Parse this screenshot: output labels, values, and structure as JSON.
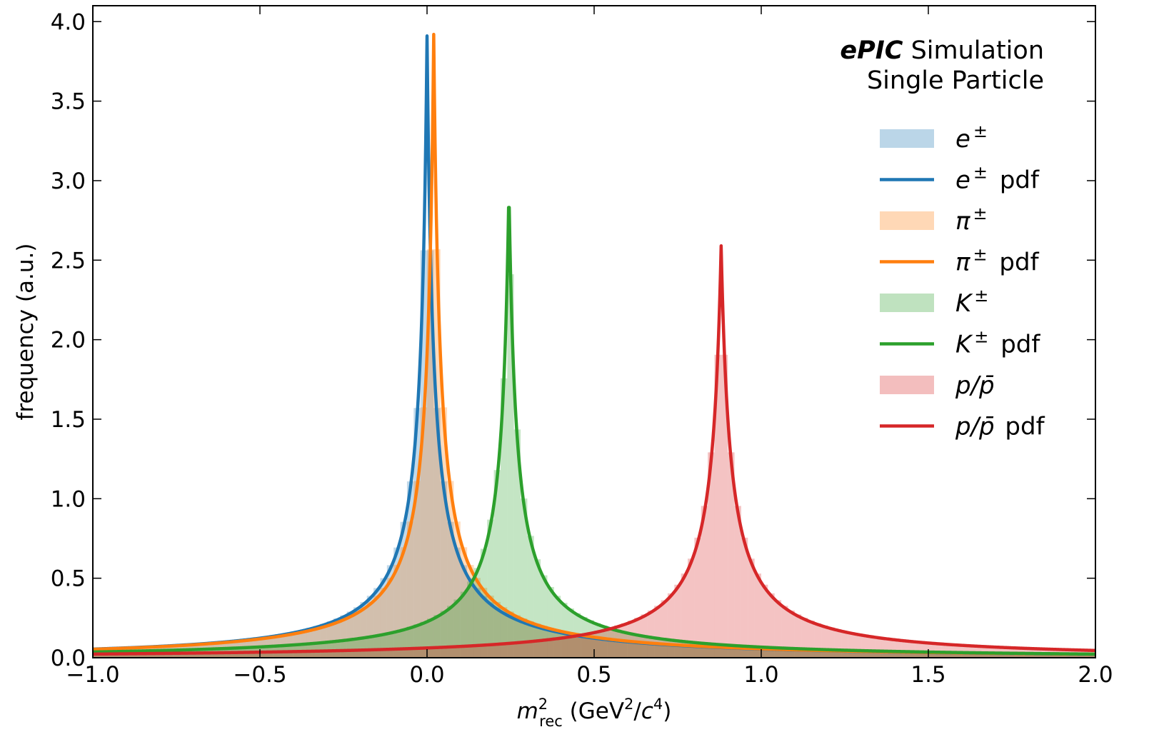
{
  "chart_data": {
    "type": "histogram",
    "title": "",
    "annotation": {
      "brand": "ePIC",
      "line1_suffix": "Simulation",
      "line2": "Single Particle"
    },
    "xlabel": {
      "symbol": "m",
      "superscript": "2",
      "subscript": "rec",
      "unit_open": "(GeV",
      "unit_sup1": "2",
      "unit_mid": "/",
      "unit_c": "c",
      "unit_sup2": "4",
      "unit_close": ")"
    },
    "ylabel": "frequency (a.u.)",
    "xlim": [
      -1.0,
      2.0
    ],
    "ylim": [
      0.0,
      4.1
    ],
    "xticks": [
      -1.0,
      -0.5,
      0.0,
      0.5,
      1.0,
      1.5,
      2.0
    ],
    "xtick_labels": [
      "−1.0",
      "−0.5",
      "0.0",
      "0.5",
      "1.0",
      "1.5",
      "2.0"
    ],
    "yticks": [
      0.0,
      0.5,
      1.0,
      1.5,
      2.0,
      2.5,
      3.0,
      3.5,
      4.0
    ],
    "ytick_labels": [
      "0.0",
      "0.5",
      "1.0",
      "1.5",
      "2.0",
      "2.5",
      "3.0",
      "3.5",
      "4.0"
    ],
    "grid": false,
    "legend_position": "right",
    "bin_width": 0.02,
    "series": [
      {
        "id": "e",
        "kind": "hist",
        "legend_base": "e",
        "legend_sup": "±",
        "legend_suffix": "",
        "color": "#1f77b4",
        "center": 0.0,
        "width": 0.16,
        "peak": 3.9,
        "hist_peak": 3.35,
        "tail_floor": 0.0
      },
      {
        "id": "e_pdf",
        "kind": "pdf",
        "legend_base": "e",
        "legend_sup": "±",
        "legend_suffix": "pdf",
        "color": "#1f77b4",
        "center": 0.0,
        "width": 0.16,
        "peak": 3.91,
        "tail_floor": 0.0
      },
      {
        "id": "pi",
        "kind": "hist",
        "legend_base": "π",
        "legend_sup": "±",
        "legend_suffix": "",
        "color": "#ff7f0e",
        "center": 0.02,
        "width": 0.16,
        "peak": 3.92,
        "hist_peak": 3.25,
        "tail_floor": 0.0
      },
      {
        "id": "pi_pdf",
        "kind": "pdf",
        "legend_base": "π",
        "legend_sup": "±",
        "legend_suffix": "pdf",
        "color": "#ff7f0e",
        "center": 0.02,
        "width": 0.16,
        "peak": 3.92,
        "tail_floor": 0.0
      },
      {
        "id": "K",
        "kind": "hist",
        "legend_base": "K",
        "legend_sup": "±",
        "legend_suffix": "",
        "color": "#2ca02c",
        "center": 0.245,
        "width": 0.185,
        "peak": 2.96,
        "hist_peak": 2.99,
        "tail_floor": 0.0
      },
      {
        "id": "K_pdf",
        "kind": "pdf",
        "legend_base": "K",
        "legend_sup": "±",
        "legend_suffix": "pdf",
        "color": "#2ca02c",
        "center": 0.245,
        "width": 0.185,
        "peak": 2.96,
        "tail_floor": 0.0
      },
      {
        "id": "p",
        "kind": "hist",
        "legend_base": "p/p̄",
        "legend_sup": "",
        "legend_suffix": "",
        "color": "#d62728",
        "center": 0.88,
        "width": 0.235,
        "peak": 2.6,
        "hist_peak": 2.3,
        "tail_floor": 0.0
      },
      {
        "id": "p_pdf",
        "kind": "pdf",
        "legend_base": "p/p̄",
        "legend_sup": "",
        "legend_suffix": "pdf",
        "color": "#d62728",
        "center": 0.88,
        "width": 0.235,
        "peak": 2.59,
        "tail_floor": 0.0
      }
    ]
  }
}
